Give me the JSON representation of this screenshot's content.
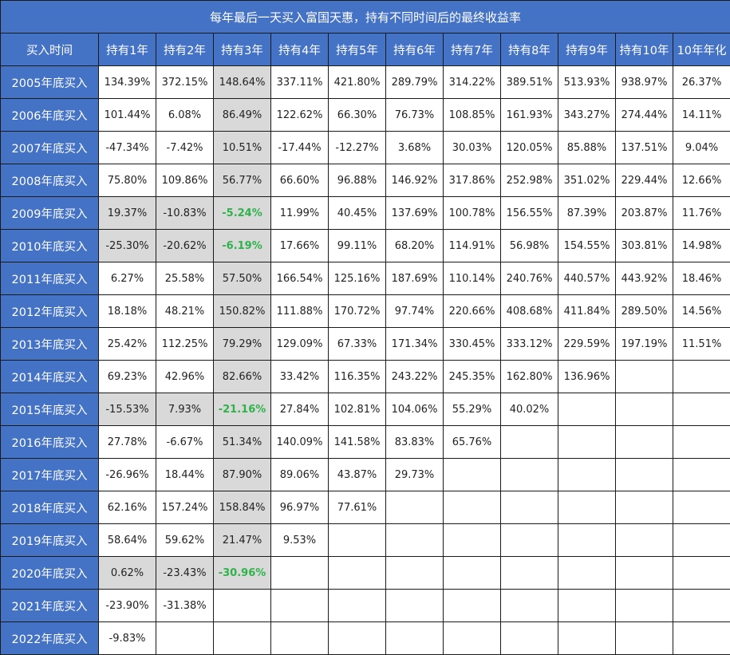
{
  "title": "每年最后一天买入富国天惠，持有不同时间后的最终收益率",
  "headers": [
    "买入时间",
    "持有1年",
    "持有2年",
    "持有3年",
    "持有4年",
    "持有5年",
    "持有6年",
    "持有7年",
    "持有8年",
    "持有9年",
    "持有10年",
    "10年年化"
  ],
  "rows": [
    {
      "label": "2005年底买入",
      "values": [
        "134.39%",
        "372.15%",
        "148.64%",
        "337.11%",
        "421.80%",
        "289.79%",
        "314.22%",
        "389.51%",
        "513.93%",
        "938.97%",
        "26.37%"
      ]
    },
    {
      "label": "2006年底买入",
      "values": [
        "101.44%",
        "6.08%",
        "86.49%",
        "122.62%",
        "66.30%",
        "76.73%",
        "108.85%",
        "161.93%",
        "343.27%",
        "274.44%",
        "14.11%"
      ]
    },
    {
      "label": "2007年底买入",
      "values": [
        "-47.34%",
        "-7.42%",
        "10.51%",
        "-17.44%",
        "-12.27%",
        "3.68%",
        "30.03%",
        "120.05%",
        "85.88%",
        "137.51%",
        "9.04%"
      ]
    },
    {
      "label": "2008年底买入",
      "values": [
        "75.80%",
        "109.86%",
        "56.77%",
        "66.60%",
        "96.88%",
        "146.92%",
        "317.86%",
        "252.98%",
        "351.02%",
        "229.44%",
        "12.66%"
      ]
    },
    {
      "label": "2009年底买入",
      "values": [
        "19.37%",
        "-10.83%",
        "-5.24%",
        "11.99%",
        "40.45%",
        "137.69%",
        "100.78%",
        "156.55%",
        "87.39%",
        "203.87%",
        "11.76%"
      ]
    },
    {
      "label": "2010年底买入",
      "values": [
        "-25.30%",
        "-20.62%",
        "-6.19%",
        "17.66%",
        "99.11%",
        "68.20%",
        "114.91%",
        "56.98%",
        "154.55%",
        "303.81%",
        "14.98%"
      ]
    },
    {
      "label": "2011年底买入",
      "values": [
        "6.27%",
        "25.58%",
        "57.50%",
        "166.54%",
        "125.16%",
        "187.69%",
        "110.14%",
        "240.76%",
        "440.57%",
        "443.92%",
        "18.46%"
      ]
    },
    {
      "label": "2012年底买入",
      "values": [
        "18.18%",
        "48.21%",
        "150.82%",
        "111.88%",
        "170.72%",
        "97.74%",
        "220.66%",
        "408.68%",
        "411.84%",
        "289.50%",
        "14.56%"
      ]
    },
    {
      "label": "2013年底买入",
      "values": [
        "25.42%",
        "112.25%",
        "79.29%",
        "129.09%",
        "67.33%",
        "171.34%",
        "330.45%",
        "333.12%",
        "229.59%",
        "197.19%",
        "11.51%"
      ]
    },
    {
      "label": "2014年底买入",
      "values": [
        "69.23%",
        "42.96%",
        "82.66%",
        "33.42%",
        "116.35%",
        "243.22%",
        "245.35%",
        "162.80%",
        "136.96%",
        "",
        ""
      ]
    },
    {
      "label": "2015年底买入",
      "values": [
        "-15.53%",
        "7.93%",
        "-21.16%",
        "27.84%",
        "102.81%",
        "104.06%",
        "55.29%",
        "40.02%",
        "",
        "",
        ""
      ]
    },
    {
      "label": "2016年底买入",
      "values": [
        "27.78%",
        "-6.67%",
        "51.34%",
        "140.09%",
        "141.58%",
        "83.83%",
        "65.76%",
        "",
        "",
        "",
        ""
      ]
    },
    {
      "label": "2017年底买入",
      "values": [
        "-26.96%",
        "18.44%",
        "87.90%",
        "89.06%",
        "43.87%",
        "29.73%",
        "",
        "",
        "",
        "",
        ""
      ]
    },
    {
      "label": "2018年底买入",
      "values": [
        "62.16%",
        "157.24%",
        "158.84%",
        "96.97%",
        "77.61%",
        "",
        "",
        "",
        "",
        "",
        ""
      ]
    },
    {
      "label": "2019年底买入",
      "values": [
        "58.64%",
        "59.62%",
        "21.47%",
        "9.53%",
        "",
        "",
        "",
        "",
        "",
        "",
        ""
      ]
    },
    {
      "label": "2020年底买入",
      "values": [
        "0.62%",
        "-23.43%",
        "-30.96%",
        "",
        "",
        "",
        "",
        "",
        "",
        "",
        ""
      ]
    },
    {
      "label": "2021年底买入",
      "values": [
        "-23.90%",
        "-31.38%",
        "",
        "",
        "",
        "",
        "",
        "",
        "",
        "",
        ""
      ]
    },
    {
      "label": "2022年底买入",
      "values": [
        "-9.83%",
        "",
        "",
        "",
        "",
        "",
        "",
        "",
        "",
        "",
        ""
      ]
    }
  ],
  "highlighted_rows": [
    "2009年底买入",
    "2010年底买入",
    "2015年底买入",
    "2020年底买入"
  ],
  "highlighted_column": "持有3年",
  "colors": {
    "header_bg": "#4472c4",
    "header_text": "#ffffff",
    "highlight_bg": "#d9d9d9",
    "negative_emphasis": "#2eb34a",
    "grid": "#1a1a1a"
  }
}
